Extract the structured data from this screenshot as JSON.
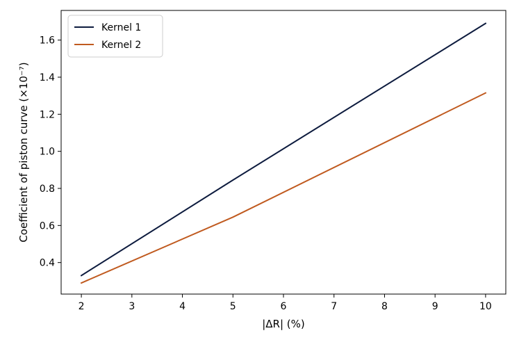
{
  "chart_data": {
    "type": "line",
    "title": "",
    "xlabel": "|ΔR| (%)",
    "ylabel": "Coefficient of piston curve (×10⁻⁷)",
    "xlim": [
      1.6,
      10.4
    ],
    "ylim": [
      0.23,
      1.76
    ],
    "x_ticks": [
      2,
      3,
      4,
      5,
      6,
      7,
      8,
      9,
      10
    ],
    "y_ticks": [
      0.4,
      0.6,
      0.8,
      1.0,
      1.2,
      1.4,
      1.6
    ],
    "x_tick_labels": [
      "2",
      "3",
      "4",
      "5",
      "6",
      "7",
      "8",
      "9",
      "10"
    ],
    "y_tick_labels": [
      "0.4",
      "0.6",
      "0.8",
      "1.0",
      "1.2",
      "1.4",
      "1.6"
    ],
    "grid": false,
    "legend_position": "top-left",
    "series": [
      {
        "name": "Kernel 1",
        "color": "#0d1b3e",
        "x": [
          2,
          5,
          10
        ],
        "values": [
          0.33,
          0.845,
          1.69
        ]
      },
      {
        "name": "Kernel 2",
        "color": "#c05a1f",
        "x": [
          2,
          5,
          10
        ],
        "values": [
          0.29,
          0.645,
          1.315
        ]
      }
    ]
  }
}
